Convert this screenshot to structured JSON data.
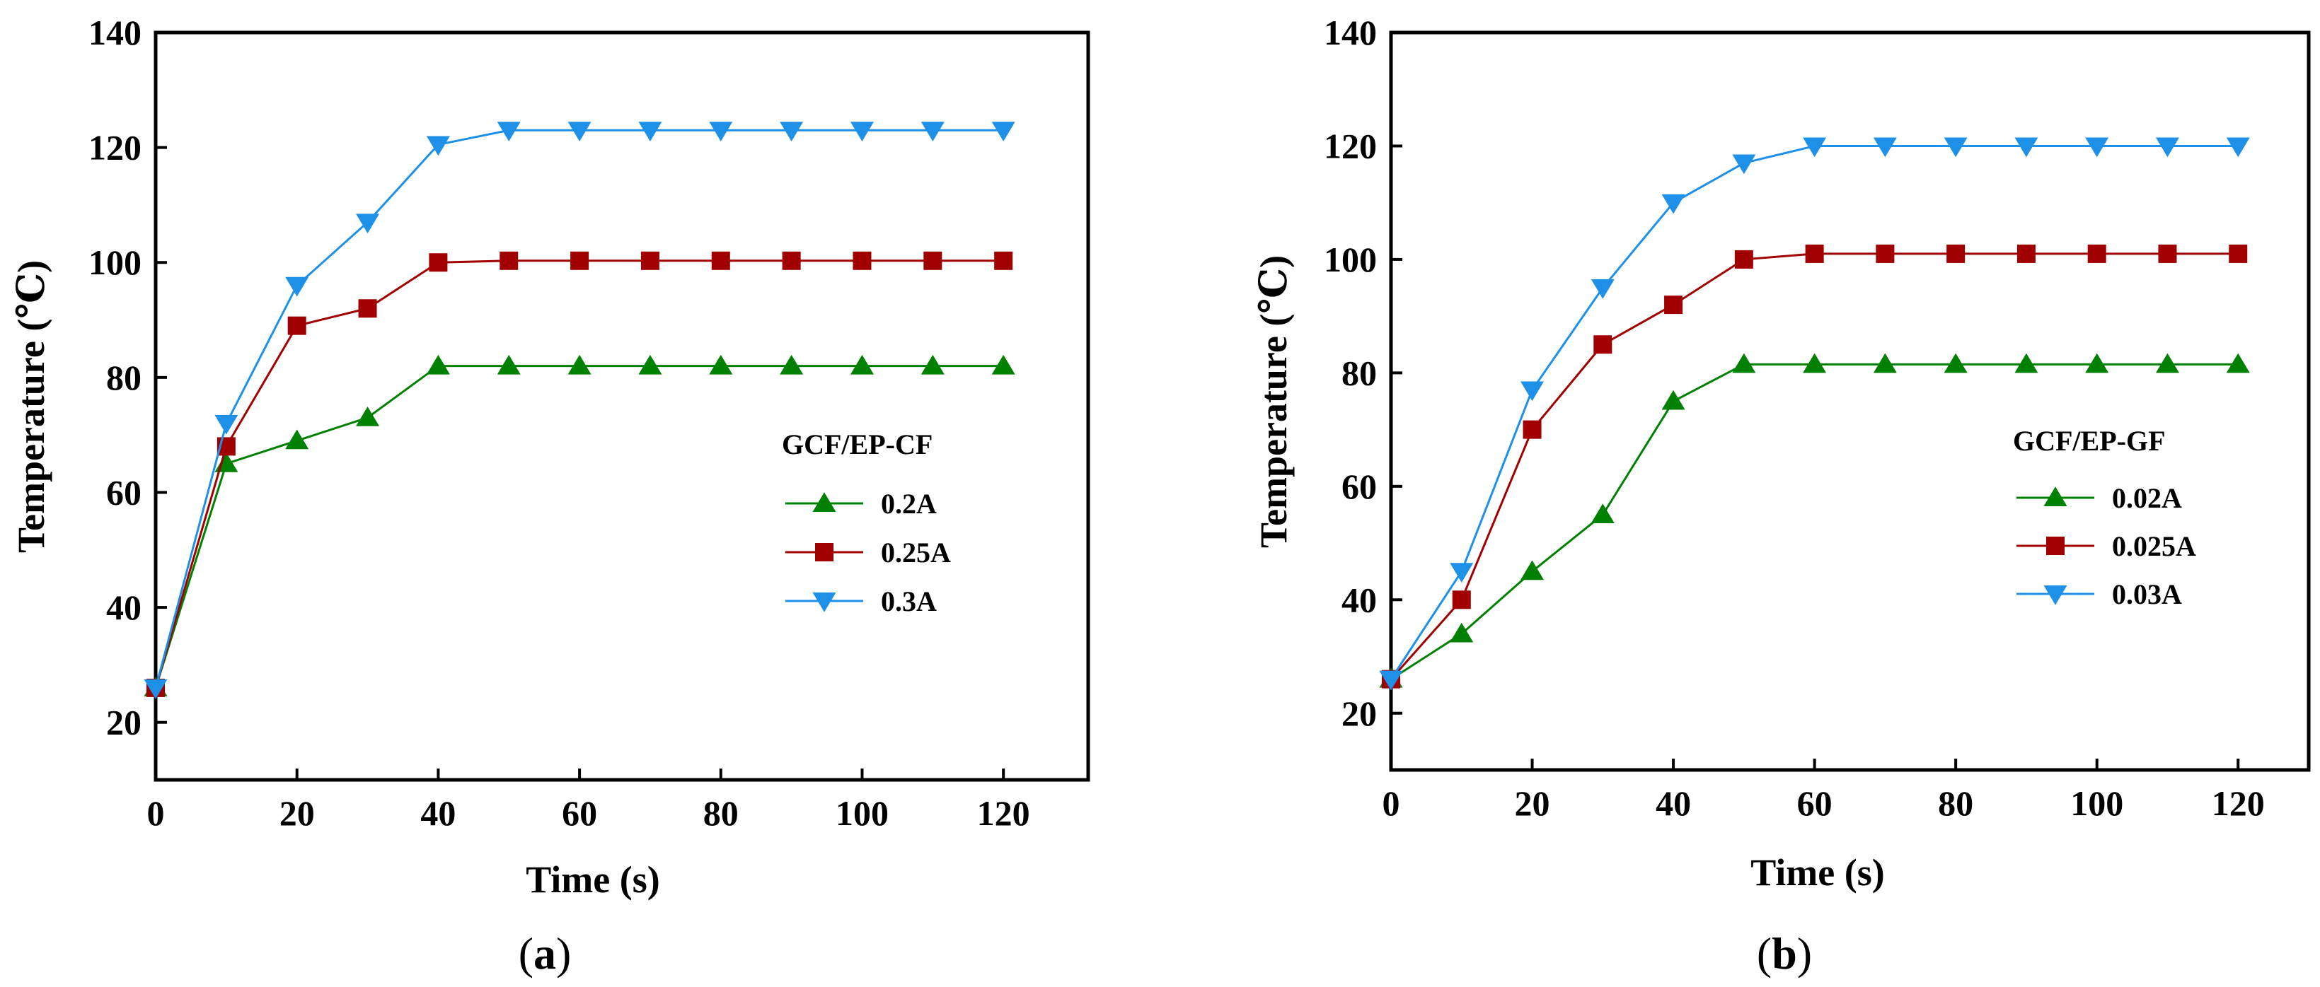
{
  "chart_data": [
    {
      "type": "line",
      "panel_label": "a",
      "title": "",
      "xlabel": "Time (s)",
      "ylabel": "Temperature (℃)",
      "xlim": [
        0,
        132
      ],
      "ylim": [
        10,
        140
      ],
      "xticks": [
        0,
        20,
        40,
        60,
        80,
        100,
        120
      ],
      "yticks": [
        20,
        40,
        60,
        80,
        100,
        120,
        140
      ],
      "grid": false,
      "legend_title": "GCF/EP-CF",
      "legend_position": "center-right",
      "x": [
        0,
        10,
        20,
        30,
        40,
        50,
        60,
        70,
        80,
        90,
        100,
        110,
        120
      ],
      "series": [
        {
          "name": "0.2A",
          "color": "#008000",
          "marker": "triangle-up",
          "values": [
            26,
            65,
            69,
            73,
            82,
            82,
            82,
            82,
            82,
            82,
            82,
            82,
            82
          ]
        },
        {
          "name": "0.25A",
          "color": "#A00000",
          "marker": "square",
          "values": [
            26,
            68,
            89,
            92,
            100,
            100.3,
            100.3,
            100.3,
            100.3,
            100.3,
            100.3,
            100.3,
            100.3
          ]
        },
        {
          "name": "0.3A",
          "color": "#1E90E8",
          "marker": "triangle-down",
          "values": [
            26,
            72,
            96,
            107,
            120.5,
            123,
            123,
            123,
            123,
            123,
            123,
            123,
            123
          ]
        }
      ]
    },
    {
      "type": "line",
      "panel_label": "b",
      "title": "",
      "xlabel": "Time (s)",
      "ylabel": "Temperature (℃)",
      "xlim": [
        0,
        130
      ],
      "ylim": [
        10,
        140
      ],
      "xticks": [
        0,
        20,
        40,
        60,
        80,
        100,
        120
      ],
      "yticks": [
        20,
        40,
        60,
        80,
        100,
        120,
        140
      ],
      "grid": false,
      "legend_title": "GCF/EP-GF",
      "legend_position": "center-right",
      "x": [
        0,
        10,
        20,
        30,
        40,
        50,
        60,
        70,
        80,
        90,
        100,
        110,
        120
      ],
      "series": [
        {
          "name": "0.02A",
          "color": "#008000",
          "marker": "triangle-up",
          "values": [
            26,
            34,
            45,
            55,
            75,
            81.5,
            81.5,
            81.5,
            81.5,
            81.5,
            81.5,
            81.5,
            81.5
          ]
        },
        {
          "name": "0.025A",
          "color": "#A00000",
          "marker": "square",
          "values": [
            26,
            40,
            70,
            85,
            92,
            100,
            101,
            101,
            101,
            101,
            101,
            101,
            101
          ]
        },
        {
          "name": "0.03A",
          "color": "#1E90E8",
          "marker": "triangle-down",
          "values": [
            26,
            45,
            77,
            95,
            110,
            117,
            120,
            120,
            120,
            120,
            120,
            120,
            120
          ]
        }
      ]
    }
  ]
}
